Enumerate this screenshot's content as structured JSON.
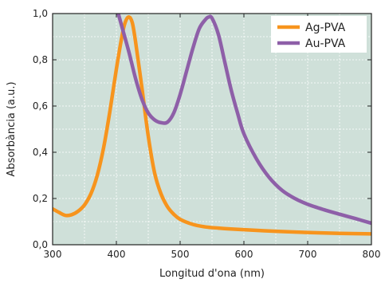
{
  "chart_data": {
    "type": "line",
    "title": "",
    "xlabel": "Longitud d'ona (nm)",
    "ylabel": "Absorbància (a.u.)",
    "xlim": [
      300,
      800
    ],
    "ylim": [
      0.0,
      1.0
    ],
    "x_ticks": [
      300,
      400,
      500,
      600,
      700,
      800
    ],
    "y_ticks": [
      0.0,
      0.2,
      0.4,
      0.6,
      0.8,
      1.0
    ],
    "x_tick_labels": [
      "300",
      "400",
      "500",
      "600",
      "700",
      "800"
    ],
    "y_tick_labels": [
      "0,0",
      "0,2",
      "0,4",
      "0,6",
      "0,8",
      "1,0"
    ],
    "grid": true,
    "legend_position": "top-right",
    "plot_background": "#cfe0d9",
    "series": [
      {
        "name": "Ag-PVA",
        "color": "#f7941d",
        "points": [
          [
            300,
            0.155
          ],
          [
            310,
            0.14
          ],
          [
            320,
            0.127
          ],
          [
            330,
            0.13
          ],
          [
            340,
            0.145
          ],
          [
            350,
            0.172
          ],
          [
            360,
            0.22
          ],
          [
            370,
            0.3
          ],
          [
            380,
            0.42
          ],
          [
            390,
            0.58
          ],
          [
            400,
            0.76
          ],
          [
            410,
            0.92
          ],
          [
            415,
            0.97
          ],
          [
            420,
            0.985
          ],
          [
            425,
            0.96
          ],
          [
            430,
            0.88
          ],
          [
            440,
            0.68
          ],
          [
            450,
            0.47
          ],
          [
            460,
            0.31
          ],
          [
            470,
            0.22
          ],
          [
            480,
            0.165
          ],
          [
            490,
            0.132
          ],
          [
            500,
            0.11
          ],
          [
            520,
            0.088
          ],
          [
            540,
            0.077
          ],
          [
            560,
            0.072
          ],
          [
            580,
            0.068
          ],
          [
            600,
            0.065
          ],
          [
            650,
            0.058
          ],
          [
            700,
            0.053
          ],
          [
            750,
            0.049
          ],
          [
            800,
            0.047
          ]
        ]
      },
      {
        "name": "Au-PVA",
        "color": "#8e5fa8",
        "points": [
          [
            403,
            1.0
          ],
          [
            410,
            0.93
          ],
          [
            420,
            0.83
          ],
          [
            430,
            0.72
          ],
          [
            440,
            0.63
          ],
          [
            450,
            0.57
          ],
          [
            460,
            0.54
          ],
          [
            470,
            0.528
          ],
          [
            480,
            0.53
          ],
          [
            490,
            0.57
          ],
          [
            500,
            0.65
          ],
          [
            510,
            0.75
          ],
          [
            520,
            0.85
          ],
          [
            530,
            0.935
          ],
          [
            540,
            0.975
          ],
          [
            545,
            0.985
          ],
          [
            550,
            0.98
          ],
          [
            560,
            0.91
          ],
          [
            570,
            0.79
          ],
          [
            580,
            0.67
          ],
          [
            590,
            0.57
          ],
          [
            600,
            0.48
          ],
          [
            620,
            0.37
          ],
          [
            640,
            0.29
          ],
          [
            660,
            0.235
          ],
          [
            680,
            0.2
          ],
          [
            700,
            0.175
          ],
          [
            725,
            0.152
          ],
          [
            750,
            0.132
          ],
          [
            775,
            0.113
          ],
          [
            800,
            0.093
          ]
        ]
      }
    ]
  }
}
